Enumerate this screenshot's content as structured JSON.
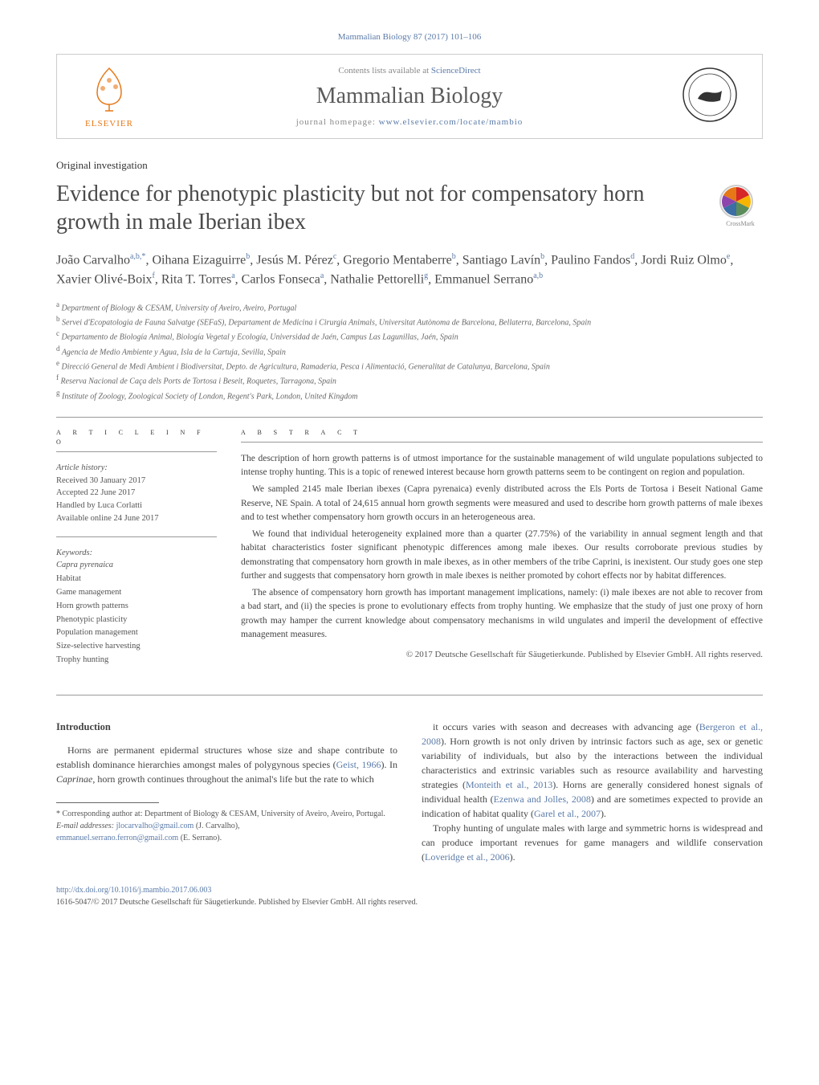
{
  "journal_ref": "Mammalian Biology 87 (2017) 101–106",
  "header": {
    "elsevier_label": "ELSEVIER",
    "contents_prefix": "Contents lists available at ",
    "contents_link": "ScienceDirect",
    "journal_name": "Mammalian Biology",
    "homepage_prefix": "journal homepage: ",
    "homepage_url": "www.elsevier.com/locate/mambio"
  },
  "article_type": "Original investigation",
  "title": "Evidence for phenotypic plasticity but not for compensatory horn growth in male Iberian ibex",
  "crossmark_label": "CrossMark",
  "authors_html": "João Carvalho<sup>a,b,*</sup>, Oihana Eizaguirre<sup>b</sup>, Jesús M. Pérez<sup>c</sup>, Gregorio Mentaberre<sup>b</sup>, Santiago Lavín<sup>b</sup>, Paulino Fandos<sup>d</sup>, Jordi Ruiz Olmo<sup>e</sup>, Xavier Olivé-Boix<sup>f</sup>, Rita T. Torres<sup>a</sup>, Carlos Fonseca<sup>a</sup>, Nathalie Pettorelli<sup>g</sup>, Emmanuel Serrano<sup>a,b</sup>",
  "affiliations": [
    "Department of Biology & CESAM, University of Aveiro, Aveiro, Portugal",
    "Servei d'Ecopatologia de Fauna Salvatge (SEFaS), Departament de Medicina i Cirurgia Animals, Universitat Autònoma de Barcelona, Bellaterra, Barcelona, Spain",
    "Departamento de Biología Animal, Biología Vegetal y Ecología, Universidad de Jaén, Campus Las Lagunillas, Jaén, Spain",
    "Agencia de Medio Ambiente y Agua, Isla de la Cartuja, Sevilla, Spain",
    "Direcció General de Medi Ambient i Biodiversitat, Depto. de Agricultura, Ramaderia, Pesca i Alimentació, Generalitat de Catalunya, Barcelona, Spain",
    "Reserva Nacional de Caça dels Ports de Tortosa i Beseit, Roquetes, Tarragona, Spain",
    "Institute of Zoology, Zoological Society of London, Regent's Park, London, United Kingdom"
  ],
  "aff_labels": [
    "a",
    "b",
    "c",
    "d",
    "e",
    "f",
    "g"
  ],
  "article_info": {
    "label": "a r t i c l e   i n f o",
    "history_label": "Article history:",
    "history": [
      "Received 30 January 2017",
      "Accepted 22 June 2017",
      "Handled by Luca Corlatti",
      "Available online 24 June 2017"
    ],
    "keywords_label": "Keywords:",
    "keywords": [
      "Capra pyrenaica",
      "Habitat",
      "Game management",
      "Horn growth patterns",
      "Phenotypic plasticity",
      "Population management",
      "Size-selective harvesting",
      "Trophy hunting"
    ]
  },
  "abstract": {
    "label": "a b s t r a c t",
    "paragraphs": [
      "The description of horn growth patterns is of utmost importance for the sustainable management of wild ungulate populations subjected to intense trophy hunting. This is a topic of renewed interest because horn growth patterns seem to be contingent on region and population.",
      "We sampled 2145 male Iberian ibexes (Capra pyrenaica) evenly distributed across the Els Ports de Tortosa i Beseit National Game Reserve, NE Spain. A total of 24,615 annual horn growth segments were measured and used to describe horn growth patterns of male ibexes and to test whether compensatory horn growth occurs in an heterogeneous area.",
      "We found that individual heterogeneity explained more than a quarter (27.75%) of the variability in annual segment length and that habitat characteristics foster significant phenotypic differences among male ibexes. Our results corroborate previous studies by demonstrating that compensatory horn growth in male ibexes, as in other members of the tribe Caprini, is inexistent. Our study goes one step further and suggests that compensatory horn growth in male ibexes is neither promoted by cohort effects nor by habitat differences.",
      "The absence of compensatory horn growth has important management implications, namely: (i) male ibexes are not able to recover from a bad start, and (ii) the species is prone to evolutionary effects from trophy hunting. We emphasize that the study of just one proxy of horn growth may hamper the current knowledge about compensatory mechanisms in wild ungulates and imperil the development of effective management measures."
    ],
    "copyright": "© 2017 Deutsche Gesellschaft für Säugetierkunde. Published by Elsevier GmbH. All rights reserved."
  },
  "body": {
    "intro_heading": "Introduction",
    "left_p1": "Horns are permanent epidermal structures whose size and shape contribute to establish dominance hierarchies amongst males of polygynous species (Geist, 1966). In Caprinae, horn growth continues throughout the animal's life but the rate to which",
    "right_p1": "it occurs varies with season and decreases with advancing age (Bergeron et al., 2008). Horn growth is not only driven by intrinsic factors such as age, sex or genetic variability of individuals, but also by the interactions between the individual characteristics and extrinsic variables such as resource availability and harvesting strategies (Monteith et al., 2013). Horns are generally considered honest signals of individual health (Ezenwa and Jolles, 2008) and are sometimes expected to provide an indication of habitat quality (Garel et al., 2007).",
    "right_p2": "Trophy hunting of ungulate males with large and symmetric horns is widespread and can produce important revenues for game managers and wildlife conservation (Loveridge et al., 2006).",
    "cites": {
      "geist": "Geist, 1966",
      "bergeron": "Bergeron et al., 2008",
      "monteith": "Monteith et al., 2013",
      "ezenwa": "Ezenwa and Jolles, 2008",
      "garel": "Garel et al., 2007",
      "loveridge": "Loveridge et al., 2006"
    }
  },
  "footnotes": {
    "corresponding": "* Corresponding author at: Department of Biology & CESAM, University of Aveiro, Aveiro, Portugal.",
    "email_label": "E-mail addresses: ",
    "email1": "jlocarvalho@gmail.com",
    "email1_name": " (J. Carvalho),",
    "email2": "emmanuel.serrano.ferron@gmail.com",
    "email2_name": " (E. Serrano)."
  },
  "footer": {
    "doi": "http://dx.doi.org/10.1016/j.mambio.2017.06.003",
    "issn_copyright": "1616-5047/© 2017 Deutsche Gesellschaft für Säugetierkunde. Published by Elsevier GmbH. All rights reserved."
  },
  "colors": {
    "link": "#5b7ba8",
    "elsevier_orange": "#e67817",
    "text_gray": "#4a4a4a",
    "border": "#999999"
  }
}
